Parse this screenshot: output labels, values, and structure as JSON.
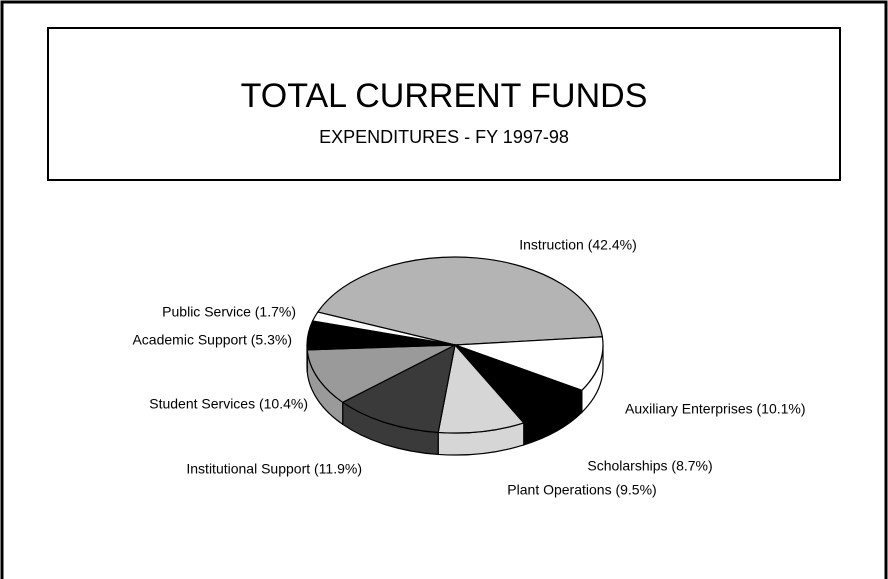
{
  "chart_data": {
    "type": "pie",
    "title": "TOTAL CURRENT FUNDS",
    "subtitle": "EXPENDITURES - FY 1997-98",
    "categories": [
      "Instruction (42.4%)",
      "Auxiliary Enterprises (10.1%)",
      "Scholarships (8.7%)",
      "Plant Operations (9.5%)",
      "Institutional Support (11.9%)",
      "Student Services (10.4%)",
      "Academic Support (5.3%)",
      "Public Service (1.7%)"
    ],
    "values": [
      42.4,
      10.1,
      8.7,
      9.5,
      11.9,
      10.4,
      5.3,
      1.7
    ],
    "colors": [
      "#b4b4b4",
      "#ffffff",
      "#000000",
      "#d6d6d6",
      "#3a3a3a",
      "#9a9a9a",
      "#000000",
      "#ffffff"
    ]
  }
}
